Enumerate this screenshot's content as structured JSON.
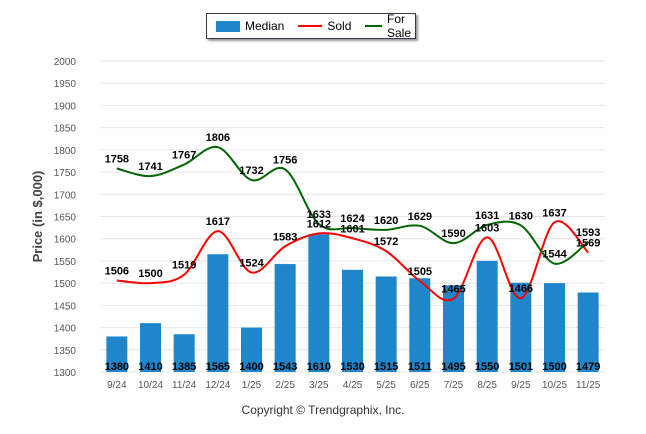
{
  "chart_data": {
    "type": "bar+line",
    "ylabel": "Price (in $,000)",
    "ylim": [
      1300,
      2000
    ],
    "yticks": [
      1300,
      1350,
      1400,
      1450,
      1500,
      1550,
      1600,
      1650,
      1700,
      1750,
      1800,
      1850,
      1900,
      1950,
      2000
    ],
    "categories": [
      "9/24",
      "10/24",
      "11/24",
      "12/24",
      "1/25",
      "2/25",
      "3/25",
      "4/25",
      "5/25",
      "6/25",
      "7/25",
      "8/25",
      "9/25",
      "10/25",
      "11/25"
    ],
    "series": [
      {
        "name": "Median",
        "kind": "bar",
        "color": "#1f86cc",
        "values": [
          1380,
          1410,
          1385,
          1565,
          1400,
          1543,
          1610,
          1530,
          1515,
          1511,
          1495,
          1550,
          1501,
          1500,
          1479
        ]
      },
      {
        "name": "Sold",
        "kind": "line",
        "color": "#ff0000",
        "values": [
          1506,
          1500,
          1519,
          1617,
          1524,
          1583,
          1612,
          1601,
          1572,
          1505,
          1465,
          1603,
          1466,
          1637,
          1569
        ]
      },
      {
        "name": "For Sale",
        "kind": "line",
        "color": "#006400",
        "values": [
          1758,
          1741,
          1767,
          1806,
          1732,
          1756,
          1633,
          1624,
          1620,
          1629,
          1590,
          1631,
          1630,
          1544,
          1593
        ]
      }
    ],
    "legend": "top-center",
    "grid": true
  },
  "footer": {
    "copyright": "Copyright © Trendgraphix, Inc."
  }
}
